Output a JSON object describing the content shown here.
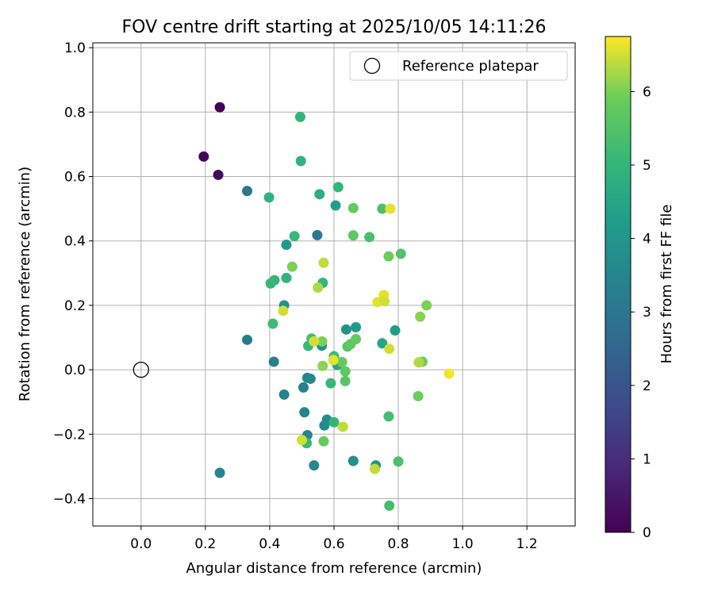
{
  "chart_data": {
    "type": "scatter",
    "title": "FOV centre drift starting at 2025/10/05 14:11:26",
    "xlabel": "Angular distance from reference (arcmin)",
    "ylabel": "Rotation from reference (arcmin)",
    "xlim": [
      -0.15,
      1.35
    ],
    "ylim": [
      -0.485,
      1.015
    ],
    "xticks": [
      0.0,
      0.2,
      0.4,
      0.6,
      0.8,
      1.0,
      1.2
    ],
    "xtick_labels": [
      "0.0",
      "0.2",
      "0.4",
      "0.6",
      "0.8",
      "1.0",
      "1.2"
    ],
    "yticks": [
      -0.4,
      -0.2,
      0.0,
      0.2,
      0.4,
      0.6,
      0.8,
      1.0
    ],
    "ytick_labels": [
      "−0.4",
      "−0.2",
      "0.0",
      "0.2",
      "0.4",
      "0.6",
      "0.8",
      "1.0"
    ],
    "grid": true,
    "legend": {
      "placement": "top-right",
      "entries": [
        "Reference platepar"
      ]
    },
    "reference_point": {
      "name": "Reference platepar",
      "x": 0.0,
      "y": 0.0
    },
    "colorbar": {
      "label": "Hours from first FF file",
      "min": 0,
      "max": 6.75,
      "ticks": [
        0,
        1,
        2,
        3,
        4,
        5,
        6
      ],
      "tick_labels": [
        "0",
        "1",
        "2",
        "3",
        "4",
        "5",
        "6"
      ],
      "colormap": "viridis"
    },
    "points": [
      {
        "x": 0.245,
        "y": 0.815,
        "h": 0.0
      },
      {
        "x": 0.195,
        "y": 0.662,
        "h": 0.1
      },
      {
        "x": 0.24,
        "y": 0.605,
        "h": 0.2
      },
      {
        "x": 0.33,
        "y": 0.555,
        "h": 3.1
      },
      {
        "x": 0.33,
        "y": 0.093,
        "h": 3.2
      },
      {
        "x": 0.245,
        "y": -0.32,
        "h": 3.4
      },
      {
        "x": 0.413,
        "y": 0.025,
        "h": 3.3
      },
      {
        "x": 0.445,
        "y": -0.077,
        "h": 3.4
      },
      {
        "x": 0.548,
        "y": 0.418,
        "h": 3.1
      },
      {
        "x": 0.505,
        "y": -0.055,
        "h": 3.3
      },
      {
        "x": 0.508,
        "y": -0.132,
        "h": 3.4
      },
      {
        "x": 0.517,
        "y": -0.025,
        "h": 3.5
      },
      {
        "x": 0.527,
        "y": -0.028,
        "h": 3.6
      },
      {
        "x": 0.517,
        "y": -0.203,
        "h": 3.5
      },
      {
        "x": 0.538,
        "y": -0.297,
        "h": 3.6
      },
      {
        "x": 0.578,
        "y": -0.155,
        "h": 3.7
      },
      {
        "x": 0.57,
        "y": -0.173,
        "h": 3.7
      },
      {
        "x": 0.562,
        "y": 0.075,
        "h": 3.8
      },
      {
        "x": 0.66,
        "y": -0.283,
        "h": 3.8
      },
      {
        "x": 0.73,
        "y": -0.297,
        "h": 3.9
      },
      {
        "x": 0.638,
        "y": 0.125,
        "h": 3.9
      },
      {
        "x": 0.445,
        "y": 0.2,
        "h": 3.8
      },
      {
        "x": 0.452,
        "y": 0.388,
        "h": 4.2
      },
      {
        "x": 0.605,
        "y": 0.51,
        "h": 4.3
      },
      {
        "x": 0.668,
        "y": 0.132,
        "h": 4.2
      },
      {
        "x": 0.79,
        "y": 0.122,
        "h": 4.3
      },
      {
        "x": 0.75,
        "y": 0.082,
        "h": 4.5
      },
      {
        "x": 0.61,
        "y": 0.015,
        "h": 4.6
      },
      {
        "x": 0.555,
        "y": 0.545,
        "h": 4.8
      },
      {
        "x": 0.398,
        "y": 0.535,
        "h": 4.9
      },
      {
        "x": 0.495,
        "y": 0.785,
        "h": 5.0
      },
      {
        "x": 0.497,
        "y": 0.648,
        "h": 4.9
      },
      {
        "x": 0.613,
        "y": 0.567,
        "h": 5.0
      },
      {
        "x": 0.477,
        "y": 0.415,
        "h": 5.1
      },
      {
        "x": 0.452,
        "y": 0.285,
        "h": 5.0
      },
      {
        "x": 0.415,
        "y": 0.278,
        "h": 5.0
      },
      {
        "x": 0.403,
        "y": 0.268,
        "h": 5.1
      },
      {
        "x": 0.565,
        "y": 0.27,
        "h": 5.0
      },
      {
        "x": 0.41,
        "y": 0.143,
        "h": 5.2
      },
      {
        "x": 0.52,
        "y": 0.074,
        "h": 5.1
      },
      {
        "x": 0.53,
        "y": 0.097,
        "h": 5.3
      },
      {
        "x": 0.6,
        "y": 0.042,
        "h": 5.2
      },
      {
        "x": 0.59,
        "y": -0.042,
        "h": 5.1
      },
      {
        "x": 0.6,
        "y": -0.163,
        "h": 5.0
      },
      {
        "x": 0.515,
        "y": -0.228,
        "h": 5.1
      },
      {
        "x": 0.77,
        "y": -0.145,
        "h": 5.3
      },
      {
        "x": 0.8,
        "y": -0.285,
        "h": 5.4
      },
      {
        "x": 0.772,
        "y": -0.422,
        "h": 5.3
      },
      {
        "x": 0.75,
        "y": 0.5,
        "h": 5.4
      },
      {
        "x": 0.71,
        "y": 0.412,
        "h": 5.4
      },
      {
        "x": 0.808,
        "y": 0.36,
        "h": 5.5
      },
      {
        "x": 0.642,
        "y": 0.072,
        "h": 5.6
      },
      {
        "x": 0.652,
        "y": 0.08,
        "h": 5.7
      },
      {
        "x": 0.668,
        "y": 0.095,
        "h": 5.8
      },
      {
        "x": 0.625,
        "y": 0.024,
        "h": 5.8
      },
      {
        "x": 0.635,
        "y": -0.005,
        "h": 5.7
      },
      {
        "x": 0.635,
        "y": -0.035,
        "h": 5.6
      },
      {
        "x": 0.568,
        "y": -0.222,
        "h": 5.8
      },
      {
        "x": 0.66,
        "y": 0.502,
        "h": 5.8
      },
      {
        "x": 0.66,
        "y": 0.417,
        "h": 5.7
      },
      {
        "x": 0.77,
        "y": 0.352,
        "h": 5.9
      },
      {
        "x": 0.47,
        "y": 0.32,
        "h": 6.0
      },
      {
        "x": 0.563,
        "y": 0.088,
        "h": 6.0
      },
      {
        "x": 0.565,
        "y": 0.012,
        "h": 6.1
      },
      {
        "x": 0.888,
        "y": 0.2,
        "h": 6.0
      },
      {
        "x": 0.868,
        "y": 0.165,
        "h": 6.1
      },
      {
        "x": 0.875,
        "y": 0.025,
        "h": 5.9
      },
      {
        "x": 0.862,
        "y": -0.082,
        "h": 5.9
      },
      {
        "x": 0.864,
        "y": 0.023,
        "h": 6.3
      },
      {
        "x": 0.55,
        "y": 0.255,
        "h": 6.3
      },
      {
        "x": 0.568,
        "y": 0.332,
        "h": 6.4
      },
      {
        "x": 0.442,
        "y": 0.183,
        "h": 6.5
      },
      {
        "x": 0.538,
        "y": 0.088,
        "h": 6.5
      },
      {
        "x": 0.598,
        "y": 0.03,
        "h": 6.6
      },
      {
        "x": 0.5,
        "y": -0.218,
        "h": 6.5
      },
      {
        "x": 0.628,
        "y": -0.177,
        "h": 6.4
      },
      {
        "x": 0.727,
        "y": -0.308,
        "h": 6.4
      },
      {
        "x": 0.772,
        "y": 0.065,
        "h": 6.5
      },
      {
        "x": 0.755,
        "y": 0.232,
        "h": 6.6
      },
      {
        "x": 0.735,
        "y": 0.21,
        "h": 6.6
      },
      {
        "x": 0.757,
        "y": 0.213,
        "h": 6.5
      },
      {
        "x": 0.775,
        "y": 0.5,
        "h": 6.6
      },
      {
        "x": 0.958,
        "y": -0.012,
        "h": 6.7
      }
    ]
  },
  "colors": {
    "reference_marker": "#000000",
    "grid": "#b0b0b0",
    "axes": "#000000"
  }
}
